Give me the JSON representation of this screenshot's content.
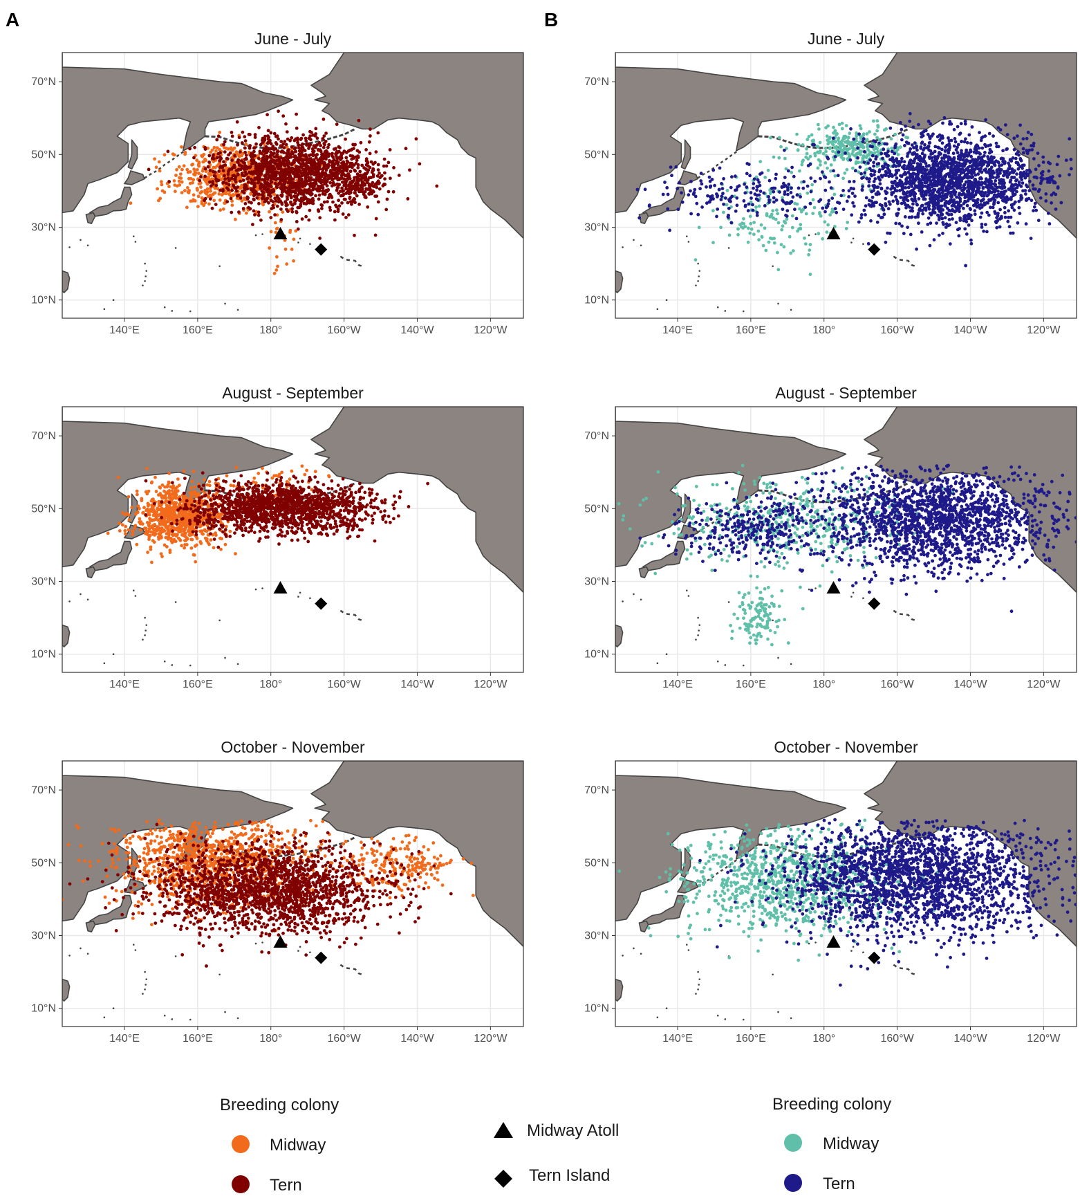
{
  "panel_letters": [
    "A",
    "B"
  ],
  "colors": {
    "A_midway": "#f26a1b",
    "A_tern": "#800000",
    "B_midway": "#5fbfa8",
    "B_tern": "#1f1a8a",
    "land": "#8c8480",
    "coast": "#444444",
    "grid": "#e8e8e8"
  },
  "legends": {
    "A": {
      "title": "Breeding colony",
      "items": [
        {
          "label": "Midway",
          "color": "#f26a1b"
        },
        {
          "label": "Tern",
          "color": "#800000"
        }
      ]
    },
    "markers": {
      "items": [
        {
          "label": "Midway Atoll",
          "shape": "triangle"
        },
        {
          "label": "Tern Island",
          "shape": "diamond"
        }
      ]
    },
    "B": {
      "title": "Breeding colony",
      "items": [
        {
          "label": "Midway",
          "color": "#5fbfa8"
        },
        {
          "label": "Tern",
          "color": "#1f1a8a"
        }
      ]
    }
  },
  "chart_data": [
    {
      "type": "scatter",
      "panel": "A",
      "title": "June - July",
      "x_ticks": [
        "140°E",
        "160°E",
        "180°",
        "160°W",
        "140°W",
        "120°W"
      ],
      "y_ticks": [
        "70°N",
        "50°N",
        "30°N",
        "10°N"
      ],
      "xlim_lon_east": [
        123,
        249
      ],
      "ylim_lat": [
        5,
        78
      ],
      "markers": [
        {
          "label": "Midway Atoll",
          "lon": 182.6,
          "lat": 28.2
        },
        {
          "label": "Tern Island",
          "lon": 193.7,
          "lat": 23.9
        }
      ],
      "series": [
        {
          "name": "Midway",
          "clusters": [
            {
              "lon": 171,
              "lat": 44,
              "slon": 9,
              "slat": 4,
              "n": 700
            },
            {
              "lon": 183,
              "lat": 25,
              "slon": 2,
              "slat": 5,
              "n": 25
            }
          ]
        },
        {
          "name": "Tern",
          "clusters": [
            {
              "lon": 187,
              "lat": 45,
              "slon": 11,
              "slat": 5,
              "n": 1500
            },
            {
              "lon": 205,
              "lat": 42,
              "slon": 3,
              "slat": 2,
              "n": 120
            }
          ]
        }
      ]
    },
    {
      "type": "scatter",
      "panel": "A",
      "title": "August - September",
      "x_ticks": [
        "140°E",
        "160°E",
        "180°",
        "160°W",
        "140°W",
        "120°W"
      ],
      "y_ticks": [
        "70°N",
        "50°N",
        "30°N",
        "10°N"
      ],
      "xlim_lon_east": [
        123,
        249
      ],
      "ylim_lat": [
        5,
        78
      ],
      "markers": [
        {
          "label": "Midway Atoll",
          "lon": 182.6,
          "lat": 28.2
        },
        {
          "label": "Tern Island",
          "lon": 193.7,
          "lat": 23.9
        }
      ],
      "series": [
        {
          "name": "Midway",
          "clusters": [
            {
              "lon": 155,
              "lat": 48,
              "slon": 6,
              "slat": 4,
              "n": 900
            },
            {
              "lon": 180,
              "lat": 56,
              "slon": 8,
              "slat": 3,
              "n": 80
            }
          ]
        },
        {
          "name": "Tern",
          "clusters": [
            {
              "lon": 183,
              "lat": 50,
              "slon": 12,
              "slat": 3.5,
              "n": 1500
            }
          ]
        }
      ]
    },
    {
      "type": "scatter",
      "panel": "A",
      "title": "October - November",
      "x_ticks": [
        "140°E",
        "160°E",
        "180°",
        "160°W",
        "140°W",
        "120°W"
      ],
      "y_ticks": [
        "70°N",
        "50°N",
        "30°N",
        "10°N"
      ],
      "xlim_lon_east": [
        123,
        249
      ],
      "ylim_lat": [
        5,
        78
      ],
      "markers": [
        {
          "label": "Midway Atoll",
          "lon": 182.6,
          "lat": 28.2
        },
        {
          "label": "Tern Island",
          "lon": 193.7,
          "lat": 23.9
        }
      ],
      "series": [
        {
          "name": "Midway",
          "clusters": [
            {
              "lon": 165,
              "lat": 50,
              "slon": 14,
              "slat": 6,
              "n": 1100
            },
            {
              "lon": 215,
              "lat": 49,
              "slon": 8,
              "slat": 4,
              "n": 200
            }
          ]
        },
        {
          "name": "Tern",
          "clusters": [
            {
              "lon": 180,
              "lat": 43,
              "slon": 16,
              "slat": 6,
              "n": 1800
            }
          ]
        }
      ]
    },
    {
      "type": "scatter",
      "panel": "B",
      "title": "June - July",
      "x_ticks": [
        "140°E",
        "160°E",
        "180°",
        "160°W",
        "140°W",
        "120°W"
      ],
      "y_ticks": [
        "70°N",
        "50°N",
        "30°N",
        "10°N"
      ],
      "xlim_lon_east": [
        123,
        249
      ],
      "ylim_lat": [
        5,
        78
      ],
      "markers": [
        {
          "label": "Midway Atoll",
          "lon": 182.6,
          "lat": 28.2
        },
        {
          "label": "Tern Island",
          "lon": 193.7,
          "lat": 23.9
        }
      ],
      "series": [
        {
          "name": "Midway",
          "clusters": [
            {
              "lon": 188,
              "lat": 52,
              "slon": 7,
              "slat": 3,
              "n": 300
            },
            {
              "lon": 168,
              "lat": 34,
              "slon": 10,
              "slat": 6,
              "n": 160
            }
          ]
        },
        {
          "name": "Tern",
          "clusters": [
            {
              "lon": 215,
              "lat": 43,
              "slon": 13,
              "slat": 6,
              "n": 1800
            },
            {
              "lon": 160,
              "lat": 39,
              "slon": 12,
              "slat": 4,
              "n": 200
            }
          ]
        }
      ]
    },
    {
      "type": "scatter",
      "panel": "B",
      "title": "August - September",
      "x_ticks": [
        "140°E",
        "160°E",
        "180°",
        "160°W",
        "140°W",
        "120°W"
      ],
      "y_ticks": [
        "70°N",
        "50°N",
        "30°N",
        "10°N"
      ],
      "xlim_lon_east": [
        123,
        249
      ],
      "ylim_lat": [
        5,
        78
      ],
      "markers": [
        {
          "label": "Midway Atoll",
          "lon": 182.6,
          "lat": 28.2
        },
        {
          "label": "Tern Island",
          "lon": 193.7,
          "lat": 23.9
        }
      ],
      "series": [
        {
          "name": "Midway",
          "clusters": [
            {
              "lon": 170,
              "lat": 46,
              "slon": 18,
              "slat": 6,
              "n": 450
            },
            {
              "lon": 162,
              "lat": 20,
              "slon": 3,
              "slat": 4,
              "n": 120
            }
          ]
        },
        {
          "name": "Tern",
          "clusters": [
            {
              "lon": 210,
              "lat": 47,
              "slon": 16,
              "slat": 7,
              "n": 1800
            },
            {
              "lon": 160,
              "lat": 44,
              "slon": 10,
              "slat": 4,
              "n": 300
            }
          ]
        }
      ]
    },
    {
      "type": "scatter",
      "panel": "B",
      "title": "October - November",
      "x_ticks": [
        "140°E",
        "160°E",
        "180°",
        "160°W",
        "140°W",
        "120°W"
      ],
      "y_ticks": [
        "70°N",
        "50°N",
        "30°N",
        "10°N"
      ],
      "xlim_lon_east": [
        123,
        249
      ],
      "ylim_lat": [
        5,
        78
      ],
      "markers": [
        {
          "label": "Midway Atoll",
          "lon": 182.6,
          "lat": 28.2
        },
        {
          "label": "Tern Island",
          "lon": 193.7,
          "lat": 23.9
        }
      ],
      "series": [
        {
          "name": "Midway",
          "clusters": [
            {
              "lon": 170,
              "lat": 45,
              "slon": 14,
              "slat": 7,
              "n": 900
            }
          ]
        },
        {
          "name": "Tern",
          "clusters": [
            {
              "lon": 205,
              "lat": 46,
              "slon": 18,
              "slat": 8,
              "n": 2200
            }
          ]
        }
      ]
    }
  ]
}
